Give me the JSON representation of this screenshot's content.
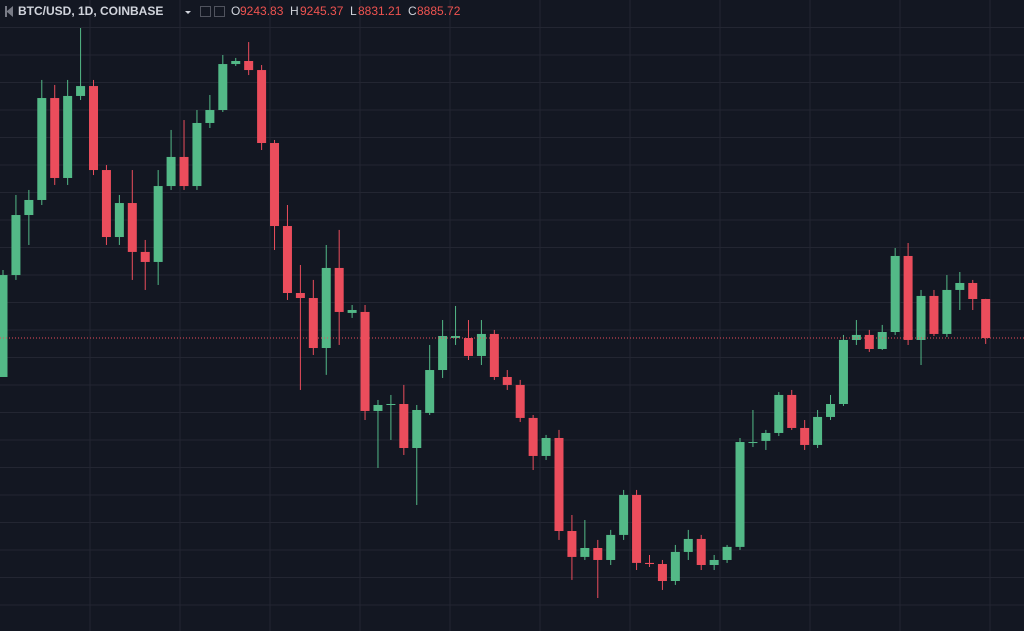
{
  "chart_data": {
    "type": "candlestick",
    "title": "BTC/USD, 1D, COINBASE",
    "ohlc_labels": [
      "O",
      "H",
      "L",
      "C"
    ],
    "up_color": "#53b987",
    "down_color": "#eb4d5c",
    "ylim": [
      6196,
      11989
    ],
    "open": [
      8528,
      9464,
      10015,
      10153,
      11089,
      10355,
      11108,
      11199,
      10428,
      9813,
      10125,
      9676,
      9584,
      10281,
      10548,
      10281,
      10860,
      10979,
      11401,
      11429,
      11346,
      10676,
      9914,
      9299,
      9253,
      8794,
      9529,
      9116,
      9125,
      8216,
      8271,
      8280,
      7876,
      8198,
      8592,
      8886,
      8886,
      8721,
      8923,
      8528,
      8455,
      8152,
      7803,
      7968,
      7114,
      6876,
      6958,
      6848,
      7078,
      7445,
      6821,
      6811,
      6655,
      6922,
      7041,
      6802,
      6848,
      6968,
      7922,
      7941,
      8014,
      8363,
      8060,
      7904,
      8161,
      8280,
      8868,
      8914,
      8785,
      8941,
      9639,
      8868,
      9272,
      8923,
      9327,
      9391,
      9243.83
    ],
    "high": [
      9510,
      10199,
      10245,
      11255,
      11209,
      11255,
      11732,
      11255,
      10474,
      10199,
      10428,
      9786,
      10428,
      10796,
      10887,
      10979,
      11117,
      11484,
      11457,
      11603,
      11392,
      10704,
      10107,
      9556,
      9419,
      9740,
      9878,
      9189,
      9189,
      8317,
      8363,
      8455,
      8271,
      8822,
      9051,
      9180,
      9051,
      9051,
      8960,
      8592,
      8501,
      8179,
      7996,
      8042,
      7261,
      7215,
      7032,
      7124,
      7491,
      7491,
      6894,
      6848,
      6986,
      7124,
      7078,
      6894,
      6986,
      7968,
      8225,
      8042,
      8390,
      8409,
      8133,
      8225,
      8363,
      8914,
      9051,
      8960,
      9006,
      9712,
      9758,
      9327,
      9327,
      9464,
      9492,
      9419,
      9245.37
    ],
    "low": [
      8528,
      9419,
      9740,
      10107,
      10291,
      10291,
      11071,
      10382,
      9740,
      9740,
      9419,
      9327,
      9373,
      10245,
      10245,
      10245,
      10814,
      10961,
      11383,
      11300,
      10612,
      9694,
      9235,
      8409,
      8730,
      8547,
      8822,
      9070,
      8133,
      7693,
      7950,
      7812,
      7353,
      8179,
      8519,
      8822,
      8684,
      8638,
      8501,
      8409,
      8115,
      7674,
      7766,
      7032,
      6665,
      6848,
      6499,
      6802,
      7032,
      6756,
      6784,
      6573,
      6619,
      6848,
      6756,
      6756,
      6821,
      6940,
      7885,
      7858,
      7986,
      8042,
      7858,
      7876,
      8133,
      8262,
      8822,
      8758,
      8776,
      8914,
      8822,
      8638,
      8904,
      8895,
      9143,
      9143,
      8831.21
    ],
    "close": [
      9464,
      10015,
      10153,
      11089,
      10355,
      11108,
      11199,
      10428,
      9813,
      10125,
      9676,
      9584,
      10281,
      10548,
      10281,
      10860,
      10979,
      11401,
      11429,
      11346,
      10676,
      9914,
      9299,
      9253,
      8794,
      9529,
      9125,
      9143,
      8216,
      8271,
      8280,
      7876,
      8225,
      8592,
      8904,
      8904,
      8721,
      8923,
      8528,
      8455,
      8152,
      7803,
      7968,
      7114,
      6876,
      6958,
      6848,
      7078,
      7445,
      6821,
      6811,
      6655,
      6922,
      7041,
      6802,
      6848,
      6968,
      7931,
      7931,
      8014,
      8363,
      8060,
      7904,
      8161,
      8280,
      8868,
      8914,
      8785,
      8941,
      9639,
      8868,
      9272,
      8923,
      9327,
      9391,
      9244,
      8885.72
    ]
  }
}
